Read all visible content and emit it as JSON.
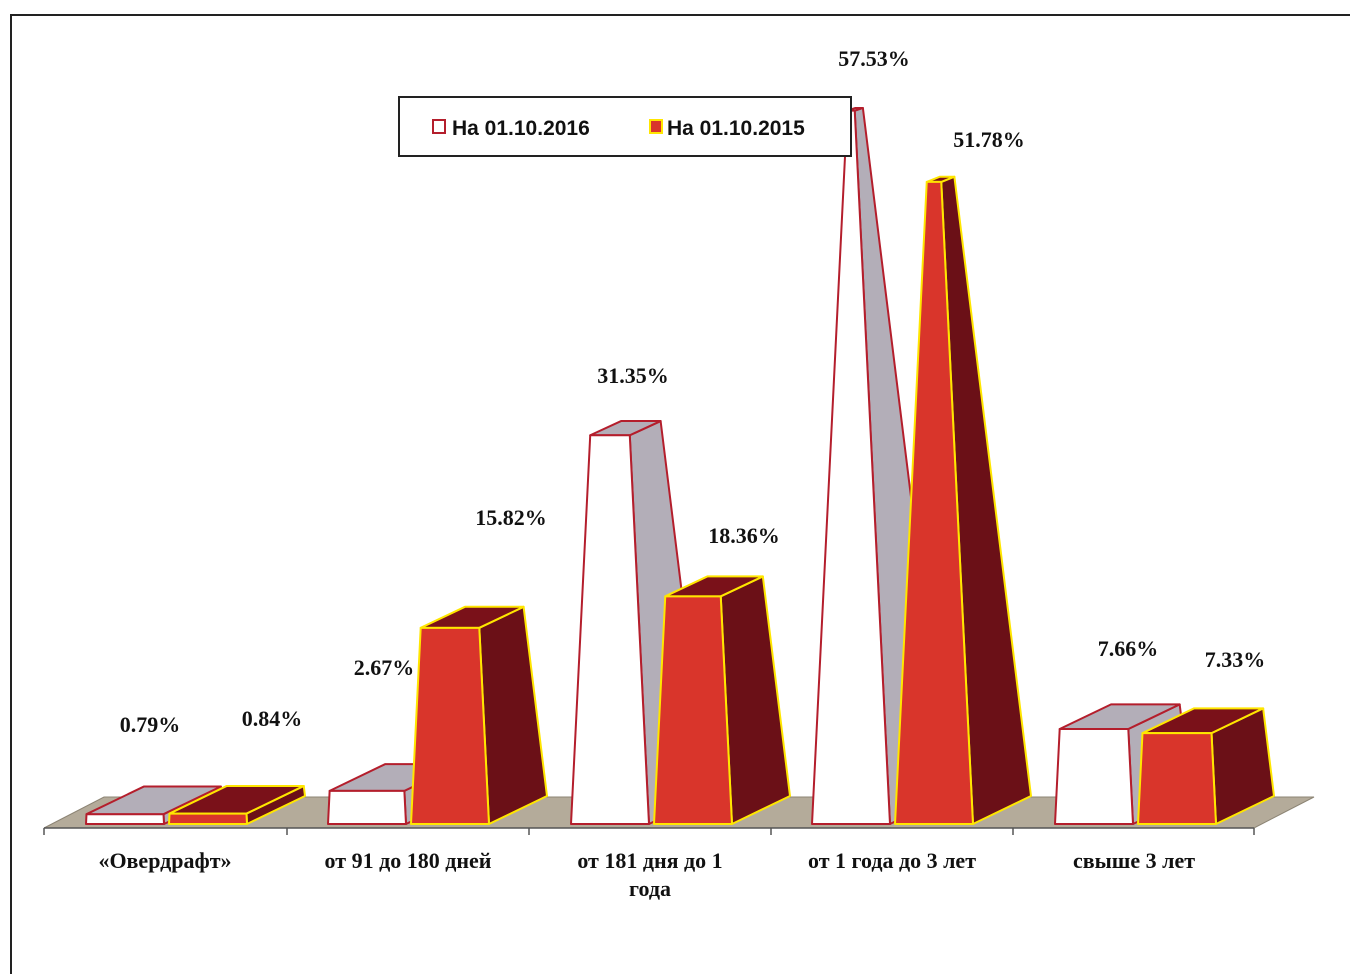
{
  "chart_data": {
    "type": "bar",
    "style": "3d-pyramid-trapezoid",
    "categories": [
      "«Овердрафт»",
      "от 91 до 180 дней",
      "от 181 дня до 1 года",
      "от 1 года до 3 лет",
      "свыше 3 лет"
    ],
    "category_lines": [
      [
        "«Овердрафт»"
      ],
      [
        "от 91 до 180 дней"
      ],
      [
        "от 181 дня до 1",
        "года"
      ],
      [
        "от 1 года до 3 лет"
      ],
      [
        "свыше 3 лет"
      ]
    ],
    "series": [
      {
        "name": "На 01.10.2016",
        "values": [
          0.79,
          2.67,
          31.35,
          57.53,
          7.66
        ],
        "labels": [
          "0.79%",
          "2.67%",
          "31.35%",
          "57.53%",
          "7.66%"
        ],
        "front_color": "#ffffff",
        "side_color": "#b3aeb8",
        "top_color": "#b3aeb8",
        "edge_color": "#b41e2c"
      },
      {
        "name": "На 01.10.2015",
        "values": [
          0.84,
          15.82,
          18.36,
          51.78,
          7.33
        ],
        "labels": [
          "0.84%",
          "15.82%",
          "18.36%",
          "51.78%",
          "7.33%"
        ],
        "front_color": "#d9352b",
        "side_color": "#6b1017",
        "top_color": "#7a1119",
        "edge_color": "#ffe600"
      }
    ],
    "ylim": [
      0,
      60
    ],
    "legend_position": "top-center",
    "grid": false
  }
}
